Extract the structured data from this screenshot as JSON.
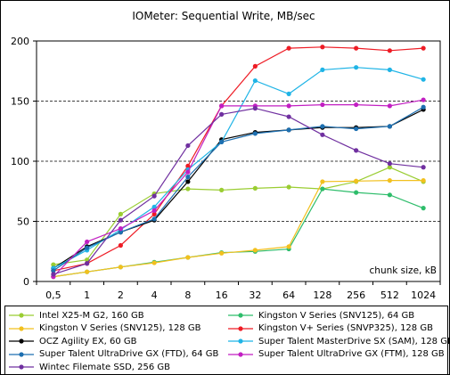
{
  "chart_data": {
    "type": "line",
    "title": "IOMeter: Sequential   Write, MB/sec",
    "xlabel": "chunk size, kB",
    "ylabel": "",
    "categories": [
      "0,5",
      "1",
      "2",
      "4",
      "8",
      "16",
      "32",
      "64",
      "128",
      "256",
      "512",
      "1024"
    ],
    "yticks": [
      0,
      50,
      100,
      150,
      200
    ],
    "ylim": [
      0,
      200
    ],
    "grid": {
      "major_y": [
        50,
        100,
        150
      ],
      "style": "dashed"
    },
    "legend_position": "bottom",
    "series": [
      {
        "name": "Intel X25-M G2, 160 GB",
        "color": "#9acd32",
        "values": [
          14,
          18,
          56,
          73,
          77,
          76,
          77.5,
          78.5,
          77,
          83,
          95,
          83
        ]
      },
      {
        "name": "Kingston V Series (SNV125), 64 GB",
        "color": "#2ebd6b",
        "values": [
          4,
          8,
          12,
          16,
          20,
          24,
          25,
          27,
          77,
          74,
          72,
          61
        ]
      },
      {
        "name": "Kingston V Series (SNV125), 128 GB",
        "color": "#f2c01e",
        "values": [
          4,
          8,
          12,
          15.5,
          20,
          23.5,
          26,
          29,
          83,
          83.5,
          84,
          84
        ]
      },
      {
        "name": "Kingston V+ Series (SNVP325), 128 GB",
        "color": "#ee1c25",
        "values": [
          9,
          15,
          30,
          56,
          96,
          146,
          179,
          194,
          195,
          194,
          192,
          194
        ]
      },
      {
        "name": "OCZ Agility EX, 60 GB",
        "color": "#000000",
        "values": [
          11,
          29,
          41,
          51,
          83,
          118,
          124,
          126,
          128,
          128,
          129,
          143
        ]
      },
      {
        "name": "Super Talent MasterDrive SX (SAM), 128 GB",
        "color": "#1fb4e6",
        "values": [
          11,
          26,
          43,
          62,
          93,
          116,
          167,
          156,
          176,
          178,
          176,
          168
        ]
      },
      {
        "name": "Super Talent UltraDrive GX (FTD), 64 GB",
        "color": "#1d6fb0",
        "values": [
          9,
          28,
          41,
          52,
          87,
          116,
          123,
          126,
          129,
          127,
          129,
          145
        ]
      },
      {
        "name": "Super Talent UltraDrive GX (FTM), 128 GB",
        "color": "#c21fc2",
        "values": [
          4,
          33,
          44,
          59,
          91,
          146,
          146,
          146,
          147,
          147,
          146,
          151
        ]
      },
      {
        "name": "Wintec Filemate SSD, 256 GB",
        "color": "#7030a0",
        "values": [
          6,
          15,
          51,
          71,
          113,
          139,
          144,
          137,
          122,
          109,
          98,
          95
        ]
      }
    ]
  }
}
